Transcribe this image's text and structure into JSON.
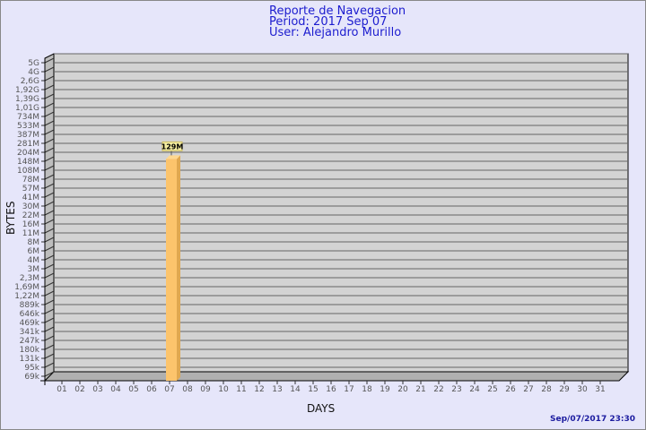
{
  "chart_data": {
    "type": "bar",
    "title": "Reporte de Navegacion",
    "subtitle_lines": [
      "Period: 2017 Sep 07",
      "User: Alejandro Murillo"
    ],
    "xlabel": "DAYS",
    "ylabel": "BYTES",
    "yscale": "log",
    "categories": [
      "01",
      "02",
      "03",
      "04",
      "05",
      "06",
      "07",
      "08",
      "09",
      "10",
      "11",
      "12",
      "13",
      "14",
      "15",
      "16",
      "17",
      "18",
      "19",
      "20",
      "21",
      "22",
      "23",
      "24",
      "25",
      "26",
      "27",
      "28",
      "29",
      "30",
      "31"
    ],
    "values": [
      0,
      0,
      0,
      0,
      0,
      0,
      129000000,
      0,
      0,
      0,
      0,
      0,
      0,
      0,
      0,
      0,
      0,
      0,
      0,
      0,
      0,
      0,
      0,
      0,
      0,
      0,
      0,
      0,
      0,
      0,
      0
    ],
    "data_labels": {
      "07": "129M"
    },
    "ytick_labels": [
      "69k",
      "95k",
      "131k",
      "180k",
      "247k",
      "341k",
      "469k",
      "646k",
      "889k",
      "1,22M",
      "1,69M",
      "2,3M",
      "3M",
      "4M",
      "6M",
      "8M",
      "11M",
      "16M",
      "22M",
      "30M",
      "41M",
      "57M",
      "78M",
      "108M",
      "148M",
      "204M",
      "281M",
      "387M",
      "533M",
      "734M",
      "1,01G",
      "1,39G",
      "1,92G",
      "2,6G",
      "4G",
      "5G"
    ],
    "ylim": [
      50000,
      5000000000
    ],
    "grid": true,
    "colors": {
      "bar": "#fcc46c",
      "bar_side": "#e0a850",
      "wall": "#d3d3d3",
      "background": "#e6e6fa",
      "title": "#1c1ccf",
      "label_box": "#f5eea0"
    }
  },
  "footer": {
    "timestamp": "Sep/07/2017 23:30"
  }
}
